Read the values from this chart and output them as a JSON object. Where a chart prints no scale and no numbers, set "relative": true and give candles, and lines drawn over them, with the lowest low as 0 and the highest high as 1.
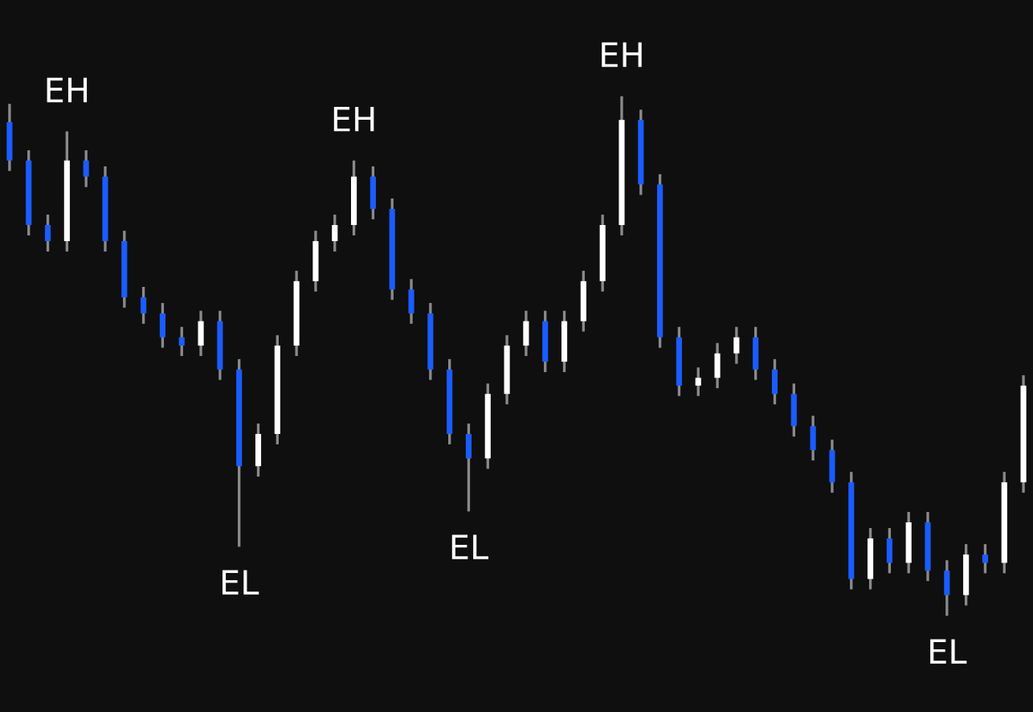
{
  "chart_data": {
    "type": "candlestick",
    "relative": true,
    "categories": [
      null,
      null,
      null,
      null,
      null,
      null,
      null,
      null,
      null,
      null,
      null,
      null,
      null,
      null,
      null,
      null,
      null,
      null,
      null,
      null,
      null,
      null,
      null,
      null,
      null,
      null,
      null,
      null,
      null,
      null,
      null,
      null,
      null,
      null,
      null,
      null,
      null,
      null,
      null,
      null,
      null,
      null,
      null,
      null,
      null,
      null,
      null,
      null,
      null,
      null,
      null,
      null,
      null,
      null
    ],
    "ohlc": [
      [
        0.95,
        0.985,
        0.856,
        0.876
      ],
      [
        0.876,
        0.896,
        0.732,
        0.752
      ],
      [
        0.752,
        0.772,
        0.701,
        0.721
      ],
      [
        0.721,
        0.932,
        0.701,
        0.876
      ],
      [
        0.876,
        0.896,
        0.825,
        0.845
      ],
      [
        0.845,
        0.865,
        0.701,
        0.721
      ],
      [
        0.721,
        0.741,
        0.593,
        0.613
      ],
      [
        0.613,
        0.633,
        0.562,
        0.582
      ],
      [
        0.582,
        0.602,
        0.516,
        0.536
      ],
      [
        0.536,
        0.556,
        0.5,
        0.52
      ],
      [
        0.52,
        0.587,
        0.5,
        0.567
      ],
      [
        0.567,
        0.587,
        0.454,
        0.474
      ],
      [
        0.474,
        0.494,
        0.133,
        0.288
      ],
      [
        0.288,
        0.37,
        0.268,
        0.35
      ],
      [
        0.35,
        0.54,
        0.33,
        0.52
      ],
      [
        0.52,
        0.664,
        0.5,
        0.644
      ],
      [
        0.644,
        0.741,
        0.624,
        0.721
      ],
      [
        0.721,
        0.772,
        0.701,
        0.752
      ],
      [
        0.752,
        0.876,
        0.732,
        0.845
      ],
      [
        0.845,
        0.865,
        0.763,
        0.783
      ],
      [
        0.783,
        0.803,
        0.608,
        0.628
      ],
      [
        0.628,
        0.648,
        0.562,
        0.582
      ],
      [
        0.582,
        0.602,
        0.454,
        0.474
      ],
      [
        0.474,
        0.494,
        0.33,
        0.35
      ],
      [
        0.35,
        0.37,
        0.201,
        0.303
      ],
      [
        0.303,
        0.447,
        0.283,
        0.427
      ],
      [
        0.427,
        0.54,
        0.407,
        0.52
      ],
      [
        0.52,
        0.587,
        0.5,
        0.567
      ],
      [
        0.567,
        0.587,
        0.469,
        0.489
      ],
      [
        0.489,
        0.587,
        0.469,
        0.567
      ],
      [
        0.567,
        0.664,
        0.547,
        0.644
      ],
      [
        0.644,
        0.772,
        0.624,
        0.752
      ],
      [
        0.752,
        1,
        0.732,
        0.954
      ],
      [
        0.954,
        0.974,
        0.81,
        0.83
      ],
      [
        0.83,
        0.85,
        0.516,
        0.536
      ],
      [
        0.536,
        0.556,
        0.423,
        0.443
      ],
      [
        0.443,
        0.478,
        0.423,
        0.458
      ],
      [
        0.458,
        0.525,
        0.438,
        0.505
      ],
      [
        0.505,
        0.556,
        0.485,
        0.536
      ],
      [
        0.536,
        0.556,
        0.454,
        0.474
      ],
      [
        0.474,
        0.494,
        0.407,
        0.427
      ],
      [
        0.427,
        0.447,
        0.345,
        0.365
      ],
      [
        0.365,
        0.385,
        0.299,
        0.319
      ],
      [
        0.319,
        0.339,
        0.237,
        0.257
      ],
      [
        0.257,
        0.277,
        0.051,
        0.071
      ],
      [
        0.071,
        0.169,
        0.051,
        0.149
      ],
      [
        0.149,
        0.169,
        0.082,
        0.102
      ],
      [
        0.102,
        0.2,
        0.082,
        0.18
      ],
      [
        0.18,
        0.2,
        0.067,
        0.087
      ],
      [
        0.087,
        0.107,
        0,
        0.04
      ],
      [
        0.04,
        0.138,
        0.02,
        0.118
      ],
      [
        0.118,
        0.138,
        0.082,
        0.102
      ],
      [
        0.102,
        0.277,
        0.082,
        0.257
      ],
      [
        0.257,
        0.463,
        0.237,
        0.443
      ]
    ],
    "colors": [
      "#1a5cff",
      "#1a5cff",
      "#1a5cff",
      "#ffffff",
      "#1a5cff",
      "#1a5cff",
      "#1a5cff",
      "#1a5cff",
      "#1a5cff",
      "#1a5cff",
      "#ffffff",
      "#1a5cff",
      "#1a5cff",
      "#ffffff",
      "#ffffff",
      "#ffffff",
      "#ffffff",
      "#ffffff",
      "#ffffff",
      "#1a5cff",
      "#1a5cff",
      "#1a5cff",
      "#1a5cff",
      "#1a5cff",
      "#1a5cff",
      "#ffffff",
      "#ffffff",
      "#ffffff",
      "#1a5cff",
      "#ffffff",
      "#ffffff",
      "#ffffff",
      "#ffffff",
      "#1a5cff",
      "#1a5cff",
      "#1a5cff",
      "#ffffff",
      "#ffffff",
      "#ffffff",
      "#1a5cff",
      "#1a5cff",
      "#1a5cff",
      "#1a5cff",
      "#1a5cff",
      "#1a5cff",
      "#ffffff",
      "#1a5cff",
      "#ffffff",
      "#1a5cff",
      "#1a5cff",
      "#ffffff",
      "#1a5cff",
      "#ffffff",
      "#ffffff"
    ],
    "annotations": [
      {
        "text": "EH",
        "y": 0.932
      },
      {
        "text": "EH",
        "y": 0.876
      },
      {
        "text": "EH",
        "y": 1
      },
      {
        "text": "EL",
        "y": 0.133
      },
      {
        "text": "EL",
        "y": 0.201
      },
      {
        "text": "EL",
        "y": 0
      }
    ]
  }
}
